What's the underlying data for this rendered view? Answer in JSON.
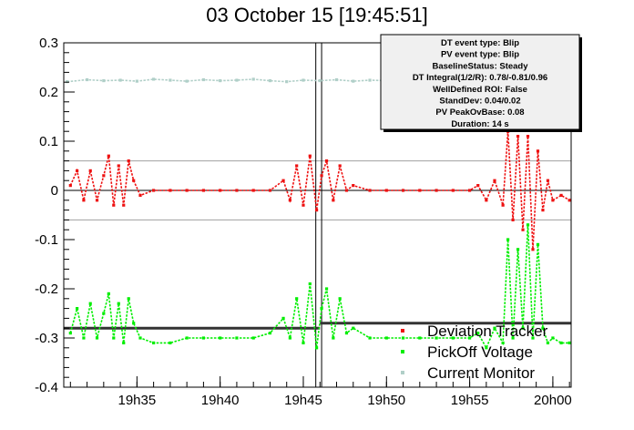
{
  "chart_data": {
    "type": "scatter",
    "title": "03 October 15 [19:45:51]",
    "xlabel": "",
    "ylabel": "",
    "x_unit": "minutes of day",
    "xlim": [
      1170.6,
      1201.1
    ],
    "ylim": [
      -0.4,
      0.3
    ],
    "x_ticks": [
      {
        "value": 1175,
        "label": "19h35"
      },
      {
        "value": 1180,
        "label": "19h40"
      },
      {
        "value": 1185,
        "label": "19h45"
      },
      {
        "value": 1190,
        "label": "19h50"
      },
      {
        "value": 1195,
        "label": "19h55"
      },
      {
        "value": 1200,
        "label": "20h00"
      }
    ],
    "y_ticks": [
      {
        "value": 0.3,
        "label": "0.3"
      },
      {
        "value": 0.2,
        "label": "0.2"
      },
      {
        "value": 0.1,
        "label": "0.1"
      },
      {
        "value": 0,
        "label": "0"
      },
      {
        "value": -0.1,
        "label": "-0.1"
      },
      {
        "value": -0.2,
        "label": "-0.2"
      },
      {
        "value": -0.3,
        "label": "-0.3"
      },
      {
        "value": -0.4,
        "label": "-0.4"
      }
    ],
    "grid": false,
    "threshold_lines": [
      0.06,
      -0.06
    ],
    "zero_line": 0,
    "event_window": [
      1185.75,
      1186.1
    ],
    "baseline_segments": [
      {
        "x": [
          1170.6,
          1186.0
        ],
        "y": -0.28
      },
      {
        "x": [
          1186.0,
          1201.1
        ],
        "y": -0.27
      }
    ],
    "series": [
      {
        "name": "Deviation Tracker",
        "color": "#ee1111",
        "x": [
          1171.0,
          1171.4,
          1171.8,
          1172.2,
          1172.6,
          1173.0,
          1173.3,
          1173.6,
          1173.9,
          1174.2,
          1174.5,
          1174.8,
          1175.2,
          1176.0,
          1177.0,
          1178.0,
          1179.0,
          1180.0,
          1181.0,
          1182.0,
          1183.0,
          1183.8,
          1184.2,
          1184.6,
          1185.0,
          1185.4,
          1185.8,
          1186.1,
          1186.4,
          1186.8,
          1187.2,
          1187.6,
          1188.0,
          1189.0,
          1190.0,
          1191.0,
          1192.0,
          1193.0,
          1194.0,
          1195.0,
          1195.5,
          1196.0,
          1196.5,
          1197.0,
          1197.3,
          1197.6,
          1197.9,
          1198.2,
          1198.5,
          1198.8,
          1199.1,
          1199.4,
          1199.7,
          1200.0,
          1200.5,
          1201.0
        ],
        "y": [
          0.01,
          0.04,
          -0.02,
          0.04,
          -0.02,
          0.03,
          0.07,
          -0.03,
          0.05,
          -0.03,
          0.06,
          0.02,
          -0.01,
          0.0,
          0.0,
          0.0,
          0.0,
          0.0,
          0.0,
          0.0,
          0.0,
          0.02,
          -0.02,
          0.05,
          -0.03,
          0.07,
          -0.04,
          0.03,
          0.06,
          -0.02,
          0.05,
          0.0,
          0.01,
          0.0,
          0.0,
          0.0,
          0.0,
          0.0,
          0.0,
          0.0,
          0.01,
          -0.02,
          0.02,
          -0.03,
          0.12,
          -0.06,
          0.11,
          -0.08,
          0.11,
          -0.12,
          0.08,
          -0.04,
          0.02,
          -0.02,
          -0.01,
          -0.02
        ]
      },
      {
        "name": "PickOff Voltage",
        "color": "#00ee00",
        "x": [
          1171.0,
          1171.4,
          1171.8,
          1172.2,
          1172.6,
          1173.0,
          1173.3,
          1173.6,
          1173.9,
          1174.2,
          1174.5,
          1174.8,
          1175.2,
          1176.0,
          1177.0,
          1178.0,
          1179.0,
          1180.0,
          1181.0,
          1182.0,
          1183.0,
          1183.8,
          1184.2,
          1184.6,
          1185.0,
          1185.4,
          1185.8,
          1186.1,
          1186.4,
          1186.8,
          1187.2,
          1187.6,
          1188.0,
          1189.0,
          1190.0,
          1191.0,
          1192.0,
          1193.0,
          1194.0,
          1195.0,
          1195.5,
          1196.0,
          1196.5,
          1197.0,
          1197.3,
          1197.6,
          1197.9,
          1198.2,
          1198.5,
          1198.8,
          1199.1,
          1199.4,
          1199.7,
          1200.0,
          1200.5,
          1201.0
        ],
        "y": [
          -0.29,
          -0.24,
          -0.3,
          -0.23,
          -0.3,
          -0.25,
          -0.21,
          -0.3,
          -0.23,
          -0.31,
          -0.22,
          -0.27,
          -0.3,
          -0.31,
          -0.31,
          -0.3,
          -0.3,
          -0.3,
          -0.3,
          -0.3,
          -0.29,
          -0.26,
          -0.3,
          -0.22,
          -0.31,
          -0.19,
          -0.32,
          -0.24,
          -0.2,
          -0.3,
          -0.22,
          -0.29,
          -0.28,
          -0.3,
          -0.3,
          -0.3,
          -0.3,
          -0.3,
          -0.3,
          -0.3,
          -0.29,
          -0.32,
          -0.28,
          -0.31,
          -0.1,
          -0.3,
          -0.12,
          -0.28,
          -0.07,
          -0.3,
          -0.11,
          -0.28,
          -0.31,
          -0.3,
          -0.31,
          -0.31
        ]
      },
      {
        "name": "Current Monitor",
        "color": "#b0cfc8",
        "x": [
          1170.8,
          1172.0,
          1173.0,
          1174.0,
          1175.0,
          1176.0,
          1177.0,
          1178.0,
          1179.0,
          1180.0,
          1181.0,
          1182.0,
          1183.0,
          1184.0,
          1185.0,
          1186.0,
          1187.0,
          1188.0,
          1189.0,
          1190.0,
          1191.0,
          1192.0,
          1193.0,
          1194.0,
          1195.0,
          1196.0
        ],
        "y": [
          0.221,
          0.225,
          0.223,
          0.224,
          0.222,
          0.226,
          0.224,
          0.222,
          0.225,
          0.223,
          0.224,
          0.226,
          0.223,
          0.221,
          0.224,
          0.223,
          0.225,
          0.222,
          0.224,
          0.223,
          0.225,
          0.222,
          0.224,
          0.223,
          0.221,
          0.224
        ]
      }
    ],
    "info_box": {
      "lines": [
        "DT event type: Blip",
        "PV event type: Blip",
        "BaselineStatus: Steady",
        "DT Integral(1/2/R): 0.78/-0.81/0.96",
        "WellDefined ROI: False",
        "StandDev: 0.04/0.02",
        "PV PeakOvBase: 0.08",
        "Duration: 14 s"
      ],
      "placement": "top-right"
    },
    "legend": {
      "placement": "bottom-right",
      "entries": [
        {
          "name": "Deviation Tracker",
          "color": "#ee1111"
        },
        {
          "name": "PickOff Voltage",
          "color": "#00ee00"
        },
        {
          "name": "Current Monitor",
          "color": "#b0cfc8"
        }
      ]
    }
  }
}
